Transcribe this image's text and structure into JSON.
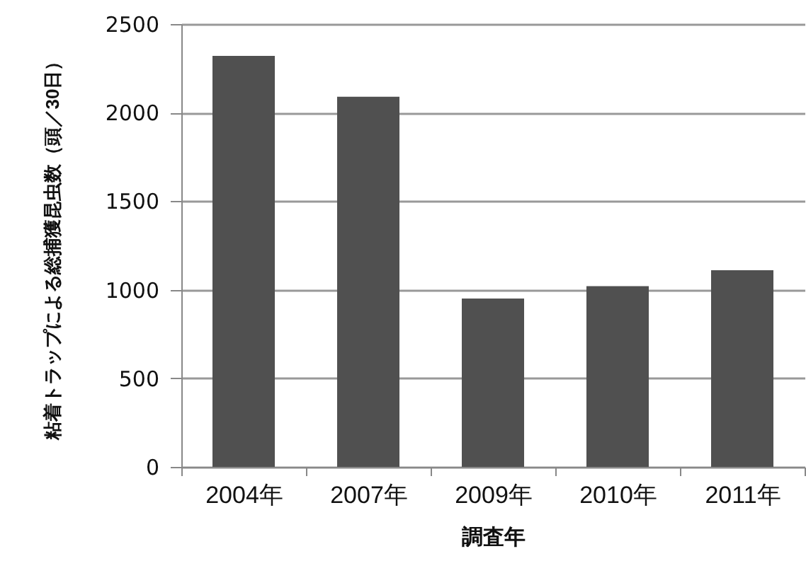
{
  "chart_data": {
    "type": "bar",
    "xlabel": "調査年",
    "ylabel": "粘着トラップによる総捕獲昆虫数（頭／30日）",
    "categories": [
      "2004年",
      "2007年",
      "2009年",
      "2010年",
      "2011年"
    ],
    "values": [
      2320,
      2090,
      950,
      1020,
      1110
    ],
    "color": "#505050",
    "ylim": [
      0,
      2500
    ],
    "yticks": [
      0,
      500,
      1000,
      1500,
      2000,
      2500
    ],
    "grid": "y"
  }
}
